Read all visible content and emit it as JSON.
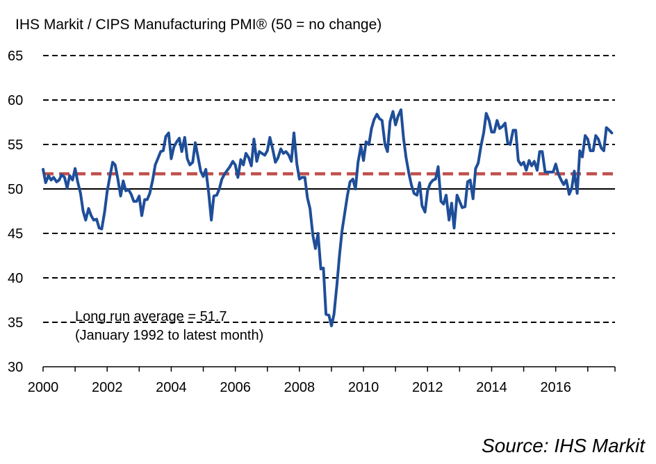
{
  "chart_data": {
    "type": "line",
    "title": "IHS Markit / CIPS Manufacturing PMI® (50 = no change)",
    "xlabel": "",
    "ylabel": "",
    "xlim": [
      2000,
      2017.85
    ],
    "ylim": [
      30,
      65
    ],
    "yticks": [
      30,
      35,
      40,
      45,
      50,
      55,
      60,
      65
    ],
    "xticks": [
      2000,
      2002,
      2004,
      2006,
      2008,
      2010,
      2012,
      2014,
      2016
    ],
    "xtick_labels": [
      "2000",
      "2002",
      "2004",
      "2006",
      "2008",
      "2010",
      "2012",
      "2014",
      "2016"
    ],
    "ytick_labels": [
      "30",
      "35",
      "40",
      "45",
      "50",
      "55",
      "60",
      "65"
    ],
    "gridlines": "dashed horizontal",
    "reference_line_value": 50,
    "average_value": 51.7,
    "annotation_lines": [
      "Long run average = 51.7",
      "(January 1992 to latest month)"
    ],
    "source": "Source: IHS Markit",
    "colors": {
      "series": "#1f4e99",
      "average": "#c0504d",
      "grid": "#000000"
    },
    "series": [
      {
        "name": "Manufacturing PMI",
        "x": [
          2000.0,
          2000.08,
          2000.17,
          2000.25,
          2000.33,
          2000.42,
          2000.5,
          2000.58,
          2000.67,
          2000.75,
          2000.83,
          2000.92,
          2001.0,
          2001.08,
          2001.17,
          2001.25,
          2001.33,
          2001.42,
          2001.5,
          2001.58,
          2001.67,
          2001.75,
          2001.83,
          2001.92,
          2002.0,
          2002.08,
          2002.17,
          2002.25,
          2002.33,
          2002.42,
          2002.5,
          2002.58,
          2002.67,
          2002.75,
          2002.83,
          2002.92,
          2003.0,
          2003.08,
          2003.17,
          2003.25,
          2003.33,
          2003.42,
          2003.5,
          2003.58,
          2003.67,
          2003.75,
          2003.83,
          2003.92,
          2004.0,
          2004.08,
          2004.17,
          2004.25,
          2004.33,
          2004.42,
          2004.5,
          2004.58,
          2004.67,
          2004.75,
          2004.83,
          2004.92,
          2005.0,
          2005.08,
          2005.17,
          2005.25,
          2005.33,
          2005.42,
          2005.5,
          2005.58,
          2005.67,
          2005.75,
          2005.83,
          2005.92,
          2006.0,
          2006.08,
          2006.17,
          2006.25,
          2006.33,
          2006.42,
          2006.5,
          2006.58,
          2006.67,
          2006.75,
          2006.83,
          2006.92,
          2007.0,
          2007.08,
          2007.17,
          2007.25,
          2007.33,
          2007.42,
          2007.5,
          2007.58,
          2007.67,
          2007.75,
          2007.83,
          2007.92,
          2008.0,
          2008.08,
          2008.17,
          2008.25,
          2008.33,
          2008.42,
          2008.5,
          2008.58,
          2008.67,
          2008.75,
          2008.83,
          2008.92,
          2009.0,
          2009.08,
          2009.17,
          2009.25,
          2009.33,
          2009.42,
          2009.5,
          2009.58,
          2009.67,
          2009.75,
          2009.83,
          2009.92,
          2010.0,
          2010.08,
          2010.17,
          2010.25,
          2010.33,
          2010.42,
          2010.5,
          2010.58,
          2010.67,
          2010.75,
          2010.83,
          2010.92,
          2011.0,
          2011.08,
          2011.17,
          2011.25,
          2011.33,
          2011.42,
          2011.5,
          2011.58,
          2011.67,
          2011.75,
          2011.83,
          2011.92,
          2012.0,
          2012.08,
          2012.17,
          2012.25,
          2012.33,
          2012.42,
          2012.5,
          2012.58,
          2012.67,
          2012.75,
          2012.83,
          2012.92,
          2013.0,
          2013.08,
          2013.17,
          2013.25,
          2013.33,
          2013.42,
          2013.5,
          2013.58,
          2013.67,
          2013.75,
          2013.83,
          2013.92,
          2014.0,
          2014.08,
          2014.17,
          2014.25,
          2014.33,
          2014.42,
          2014.5,
          2014.58,
          2014.67,
          2014.75,
          2014.83,
          2014.92,
          2015.0,
          2015.08,
          2015.17,
          2015.25,
          2015.33,
          2015.42,
          2015.5,
          2015.58,
          2015.67,
          2015.75,
          2015.83,
          2015.92,
          2016.0,
          2016.08,
          2016.17,
          2016.25,
          2016.33,
          2016.42,
          2016.5,
          2016.58,
          2016.67,
          2016.75,
          2016.83,
          2016.92,
          2017.0,
          2017.08,
          2017.17,
          2017.25,
          2017.33,
          2017.42,
          2017.5,
          2017.58,
          2017.67,
          2017.75
        ],
        "values": [
          52.2,
          50.7,
          51.5,
          51.0,
          51.3,
          50.8,
          51.0,
          51.6,
          51.3,
          50.1,
          51.5,
          51.0,
          52.3,
          50.8,
          49.5,
          47.5,
          46.5,
          47.8,
          47.0,
          46.5,
          46.6,
          45.6,
          45.5,
          47.4,
          49.7,
          51.3,
          53.0,
          52.7,
          51.2,
          49.2,
          50.9,
          49.8,
          49.9,
          49.4,
          48.6,
          48.6,
          49.2,
          47.0,
          48.8,
          48.8,
          49.5,
          51.0,
          52.7,
          53.4,
          54.2,
          54.3,
          55.9,
          56.3,
          53.4,
          54.7,
          55.3,
          55.7,
          54.2,
          55.8,
          53.4,
          52.7,
          53.0,
          55.2,
          53.7,
          52.0,
          51.4,
          52.2,
          49.5,
          46.5,
          49.2,
          49.3,
          50.0,
          51.1,
          51.7,
          52.1,
          52.5,
          53.1,
          52.7,
          51.3,
          53.3,
          52.7,
          54.0,
          53.5,
          52.6,
          55.6,
          53.1,
          54.2,
          54.0,
          53.8,
          54.3,
          55.8,
          54.4,
          53.0,
          53.5,
          54.5,
          54.0,
          54.2,
          53.8,
          53.1,
          56.3,
          52.8,
          51.1,
          51.3,
          51.3,
          49.0,
          47.8,
          44.8,
          43.3,
          45.0,
          41.0,
          41.1,
          35.9,
          35.8,
          34.6,
          35.9,
          39.2,
          42.5,
          45.3,
          47.4,
          49.3,
          50.8,
          51.1,
          50.0,
          53.0,
          54.8,
          53.2,
          55.3,
          55.0,
          56.8,
          57.8,
          58.4,
          57.9,
          57.7,
          55.0,
          54.2,
          57.6,
          58.7,
          57.2,
          58.2,
          58.9,
          55.7,
          53.5,
          51.7,
          50.4,
          49.5,
          49.3,
          50.7,
          48.1,
          47.4,
          49.8,
          50.6,
          51.0,
          51.1,
          52.5,
          48.6,
          48.3,
          49.3,
          46.5,
          48.4,
          45.6,
          49.3,
          48.6,
          47.9,
          48.0,
          50.8,
          51.0,
          48.9,
          52.3,
          52.9,
          54.9,
          56.3,
          58.5,
          57.7,
          56.4,
          56.4,
          57.7,
          56.8,
          57.0,
          57.4,
          55.2,
          55.0,
          56.6,
          56.6,
          53.2,
          52.7,
          53.0,
          52.1,
          53.2,
          52.6,
          53.1,
          52.1,
          54.2,
          54.2,
          51.9,
          51.9,
          51.9,
          51.9,
          52.8,
          51.7,
          51.0,
          50.5,
          51.0,
          49.4,
          50.1,
          52.0,
          49.5,
          54.3,
          53.6,
          56.0,
          55.6,
          54.3,
          54.3,
          56.0,
          55.6,
          54.6,
          54.3,
          56.9,
          56.6,
          56.3
        ]
      }
    ]
  }
}
